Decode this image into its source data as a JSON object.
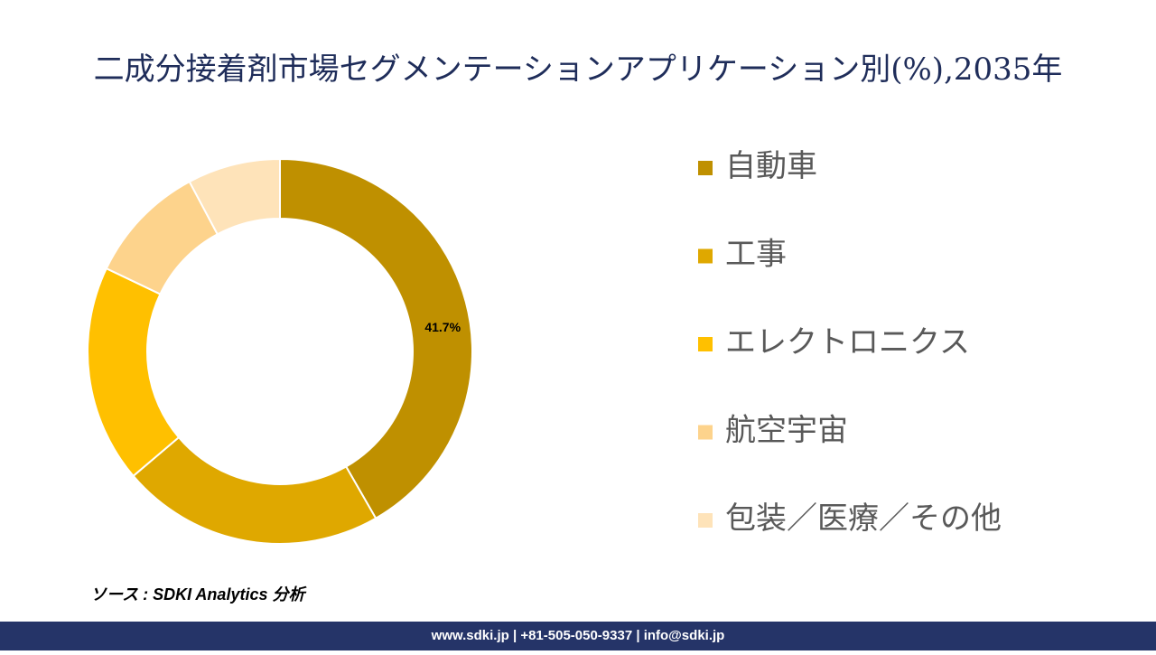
{
  "chart_data": {
    "type": "donut",
    "title": "二成分接着剤市場セグメンテーションアプリケーション別(%),2035年",
    "categories": [
      "自動車",
      "工事",
      "エレクトロニクス",
      "航空宇宙",
      "包装／医療／その他"
    ],
    "values": [
      41.7,
      22.1,
      18.3,
      10.1,
      7.8
    ],
    "value_labels": [
      "41.7%",
      null,
      null,
      null,
      null
    ],
    "colors": [
      "#bf9000",
      "#dfa800",
      "#ffc000",
      "#fdd38c",
      "#fee3b9"
    ],
    "legend": "right"
  },
  "source": "ソース : SDKI Analytics 分析",
  "footer": "www.sdki.jp | +81-505-050-9337 | info@sdki.jp"
}
